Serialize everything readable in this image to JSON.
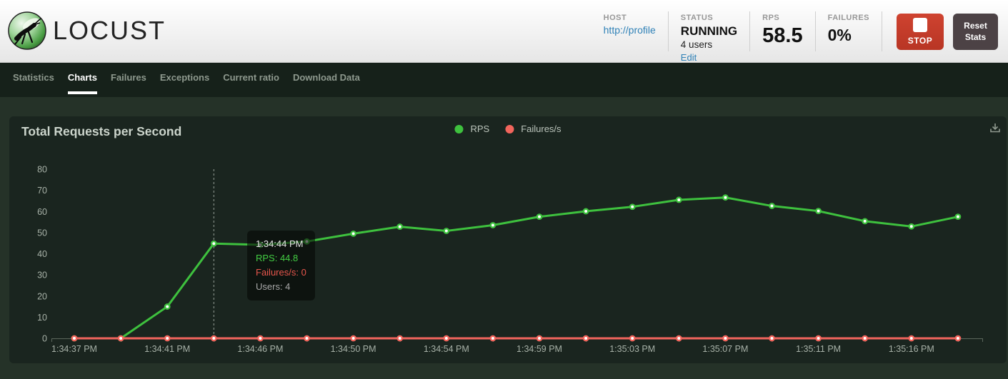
{
  "header": {
    "logo_text": "LOCUST",
    "stats": {
      "host": {
        "label": "HOST",
        "value": "http://profile"
      },
      "status": {
        "label": "STATUS",
        "value": "RUNNING",
        "users": "4 users",
        "edit": "Edit"
      },
      "rps": {
        "label": "RPS",
        "value": "58.5"
      },
      "failures": {
        "label": "FAILURES",
        "value": "0%"
      }
    },
    "stop_button": "STOP",
    "reset_button": "Reset Stats"
  },
  "nav": {
    "active_tab": "Charts",
    "tabs": [
      {
        "label": "Statistics"
      },
      {
        "label": "Charts"
      },
      {
        "label": "Failures"
      },
      {
        "label": "Exceptions"
      },
      {
        "label": "Current ratio"
      },
      {
        "label": "Download Data"
      }
    ]
  },
  "icons": {
    "logo": "locust-logo-icon",
    "stop": "stop-square-icon",
    "download": "download-icon"
  },
  "colors": {
    "rps_green": "#3ec13e",
    "failures_red": "#f2655c",
    "link_blue": "#2f81b7",
    "stop_red": "#c43a2a",
    "nav_bg": "#16211a",
    "page_bg": "#253228",
    "panel_bg": "#1a251f"
  },
  "chart_data": {
    "type": "line",
    "title": "Total Requests per Second",
    "grid": false,
    "legend_position": "top-center",
    "ylim": [
      0,
      80
    ],
    "y_ticks": [
      0,
      10,
      20,
      30,
      40,
      50,
      60,
      70,
      80
    ],
    "x_tick_labels": [
      "1:34:37 PM",
      "1:34:41 PM",
      "1:34:46 PM",
      "1:34:50 PM",
      "1:34:54 PM",
      "1:34:59 PM",
      "1:35:03 PM",
      "1:35:07 PM",
      "1:35:11 PM",
      "1:35:16 PM"
    ],
    "x_tick_every": 2,
    "series": [
      {
        "name": "RPS",
        "color": "#3ec13e",
        "values": [
          0,
          0,
          15,
          44.8,
          44.2,
          45.8,
          49.5,
          52.8,
          50.8,
          53.5,
          57.5,
          60.1,
          62.2,
          65.5,
          66.6,
          62.6,
          60.2,
          55.4,
          52.9,
          57.5
        ]
      },
      {
        "name": "Failures/s",
        "color": "#f2655c",
        "values": [
          0,
          0,
          0,
          0,
          0,
          0,
          0,
          0,
          0,
          0,
          0,
          0,
          0,
          0,
          0,
          0,
          0,
          0,
          0,
          0
        ]
      }
    ],
    "hover": {
      "point_index": 3,
      "time": "1:34:44 PM",
      "rps": 44.8,
      "failures": 0,
      "users": 4
    }
  },
  "tooltip": {
    "time": "1:34:44 PM",
    "rps_line": "RPS: 44.8",
    "failures_line": "Failures/s: 0",
    "users_line": "Users: 4"
  }
}
